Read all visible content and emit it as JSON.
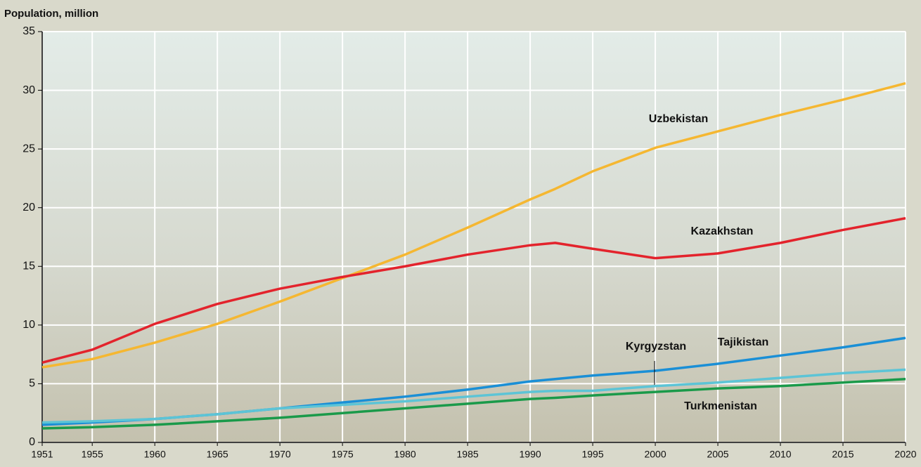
{
  "chart_data": {
    "type": "line",
    "y_axis_label": "Population, million",
    "x": [
      1951,
      1955,
      1960,
      1965,
      1970,
      1975,
      1980,
      1985,
      1990,
      1992,
      1995,
      2000,
      2005,
      2010,
      2015,
      2020
    ],
    "xlim": [
      1951,
      2020
    ],
    "xticks": [
      1951,
      1955,
      1960,
      1965,
      1970,
      1975,
      1980,
      1985,
      1990,
      1995,
      2000,
      2005,
      2010,
      2015,
      2020
    ],
    "ylim": [
      0,
      35
    ],
    "yticks": [
      0,
      5,
      10,
      15,
      20,
      25,
      30,
      35
    ],
    "grid": true,
    "series": [
      {
        "name": "Uzbekistan",
        "color": "#f5b731",
        "values": [
          6.4,
          7.1,
          8.5,
          10.1,
          12.0,
          14.0,
          16.0,
          18.3,
          20.7,
          21.6,
          23.1,
          25.1,
          26.5,
          27.9,
          29.2,
          30.6
        ]
      },
      {
        "name": "Kazakhstan",
        "color": "#e3232c",
        "values": [
          6.8,
          7.9,
          10.1,
          11.8,
          13.1,
          14.1,
          15.0,
          16.0,
          16.8,
          17.0,
          16.5,
          15.7,
          16.1,
          17.0,
          18.1,
          19.1
        ]
      },
      {
        "name": "Tajikistan",
        "color": "#1a8fd6",
        "values": [
          1.5,
          1.7,
          2.0,
          2.4,
          2.9,
          3.4,
          3.9,
          4.5,
          5.2,
          5.4,
          5.7,
          6.1,
          6.7,
          7.4,
          8.1,
          8.9
        ]
      },
      {
        "name": "Kyrgyzstan",
        "color": "#5cc4d6",
        "values": [
          1.7,
          1.8,
          2.0,
          2.4,
          2.9,
          3.2,
          3.5,
          3.9,
          4.3,
          4.4,
          4.4,
          4.8,
          5.1,
          5.5,
          5.9,
          6.2
        ]
      },
      {
        "name": "Turkmenistan",
        "color": "#1a9a4a",
        "values": [
          1.2,
          1.3,
          1.5,
          1.8,
          2.1,
          2.5,
          2.9,
          3.3,
          3.7,
          3.8,
          4.0,
          4.3,
          4.6,
          4.8,
          5.1,
          5.4
        ]
      }
    ]
  }
}
